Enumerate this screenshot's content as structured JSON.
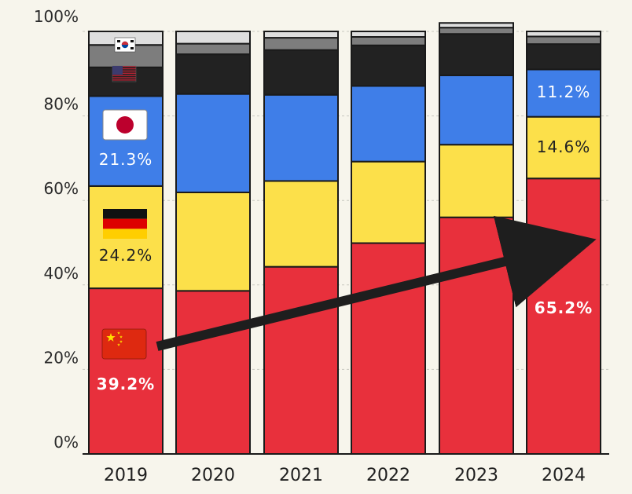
{
  "chart_data": {
    "type": "bar",
    "stacked": true,
    "normalized": true,
    "categories": [
      "2019",
      "2020",
      "2021",
      "2022",
      "2023",
      "2024"
    ],
    "ylim": [
      0,
      100
    ],
    "yticks": [
      "0%",
      "20%",
      "40%",
      "60%",
      "80%",
      "100%"
    ],
    "grid": true,
    "series": [
      {
        "key": "china",
        "flag": "china-flag-icon",
        "color": "#e8303c",
        "values": [
          39.2,
          38.6,
          44.3,
          49.9,
          56.0,
          65.2
        ]
      },
      {
        "key": "germany",
        "flag": "germany-flag-icon",
        "color": "#fce04a",
        "values": [
          24.2,
          23.3,
          20.3,
          19.3,
          17.2,
          14.6
        ]
      },
      {
        "key": "japan",
        "flag": "japan-flag-icon",
        "color": "#3f7ee8",
        "values": [
          21.3,
          23.3,
          20.4,
          17.9,
          16.4,
          11.2
        ]
      },
      {
        "key": "usa",
        "flag": "usa-flag-icon",
        "color": "#222222",
        "values": [
          6.8,
          9.4,
          10.6,
          9.6,
          9.8,
          6.0
        ]
      },
      {
        "key": "korea",
        "flag": "korea-flag-icon",
        "color": "#7d7d7d",
        "values": [
          5.3,
          2.5,
          2.9,
          2.0,
          1.5,
          1.8
        ]
      },
      {
        "key": "other",
        "color": "#dedede",
        "values": [
          3.2,
          2.9,
          1.5,
          1.3,
          1.1,
          1.2
        ]
      }
    ],
    "data_labels": {
      "china_2019": "39.2%",
      "germany_2019": "24.2%",
      "japan_2019": "21.3%",
      "china_2024": "65.2%",
      "germany_2024": "14.6%",
      "japan_2024": "11.2%"
    },
    "annotations": [
      "trend-arrow"
    ]
  }
}
